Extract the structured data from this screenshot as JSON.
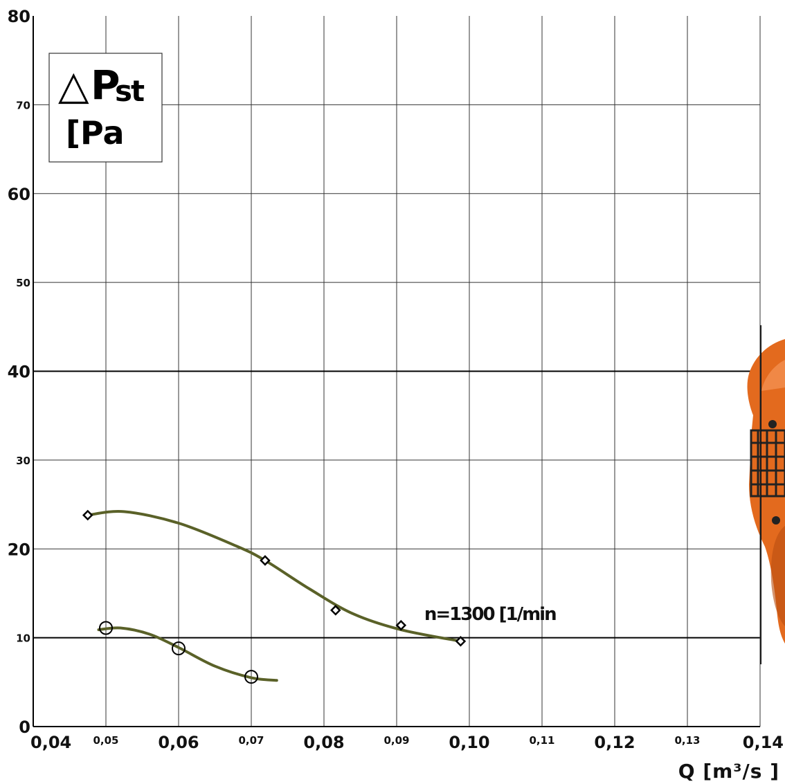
{
  "chart_data": {
    "type": "line",
    "xlabel": "Q [m³/s ]",
    "ylabel_delta": "△",
    "ylabel_symbol": "P",
    "ylabel_sub": "st",
    "ylabel_unit": "[Pa",
    "xlim": [
      0.04,
      0.14
    ],
    "ylim": [
      0,
      80
    ],
    "x_ticks": [
      {
        "value": 0.04,
        "label": "0,04",
        "major": true
      },
      {
        "value": 0.05,
        "label": "0,05",
        "major": false
      },
      {
        "value": 0.06,
        "label": "0,06",
        "major": true
      },
      {
        "value": 0.07,
        "label": "0,07",
        "major": false
      },
      {
        "value": 0.08,
        "label": "0,08",
        "major": true
      },
      {
        "value": 0.09,
        "label": "0,09",
        "major": false
      },
      {
        "value": 0.1,
        "label": "0,10",
        "major": true
      },
      {
        "value": 0.11,
        "label": "0,11",
        "major": false
      },
      {
        "value": 0.12,
        "label": "0,12",
        "major": true
      },
      {
        "value": 0.13,
        "label": "0,13",
        "major": false
      },
      {
        "value": 0.14,
        "label": "0,14",
        "major": true
      }
    ],
    "y_ticks": [
      {
        "value": 0,
        "label": "0",
        "major": true
      },
      {
        "value": 10,
        "label": "10",
        "major": false
      },
      {
        "value": 20,
        "label": "20",
        "major": true
      },
      {
        "value": 30,
        "label": "30",
        "major": false
      },
      {
        "value": 40,
        "label": "40",
        "major": true
      },
      {
        "value": 50,
        "label": "50",
        "major": false
      },
      {
        "value": 60,
        "label": "60",
        "major": true
      },
      {
        "value": 70,
        "label": "70",
        "major": false
      },
      {
        "value": 80,
        "label": "80",
        "major": true
      }
    ],
    "grid": true,
    "curve_color": "#5a6128",
    "series": [
      {
        "marker": "diamond",
        "points": [
          {
            "x": 0.0475,
            "y": 23.8
          },
          {
            "x": 0.0719,
            "y": 18.7
          },
          {
            "x": 0.0816,
            "y": 13.1
          },
          {
            "x": 0.0906,
            "y": 11.4
          },
          {
            "x": 0.0988,
            "y": 9.6
          }
        ],
        "curve": [
          {
            "x": 0.0475,
            "y": 23.8
          },
          {
            "x": 0.0525,
            "y": 24.2
          },
          {
            "x": 0.06,
            "y": 22.9
          },
          {
            "x": 0.068,
            "y": 20.3
          },
          {
            "x": 0.0719,
            "y": 18.7
          },
          {
            "x": 0.078,
            "y": 15.5
          },
          {
            "x": 0.084,
            "y": 12.7
          },
          {
            "x": 0.0906,
            "y": 10.9
          },
          {
            "x": 0.0988,
            "y": 9.6
          }
        ]
      },
      {
        "marker": "circle",
        "points": [
          {
            "x": 0.05,
            "y": 11.1
          },
          {
            "x": 0.06,
            "y": 8.8
          },
          {
            "x": 0.07,
            "y": 5.6
          }
        ],
        "curve": [
          {
            "x": 0.049,
            "y": 10.9
          },
          {
            "x": 0.052,
            "y": 11.1
          },
          {
            "x": 0.056,
            "y": 10.4
          },
          {
            "x": 0.06,
            "y": 8.9
          },
          {
            "x": 0.065,
            "y": 6.8
          },
          {
            "x": 0.07,
            "y": 5.5
          },
          {
            "x": 0.0735,
            "y": 5.2
          }
        ]
      }
    ],
    "annotation": {
      "text": "n=1300 [1/min",
      "x": 0.0938,
      "y": 12.0
    }
  }
}
